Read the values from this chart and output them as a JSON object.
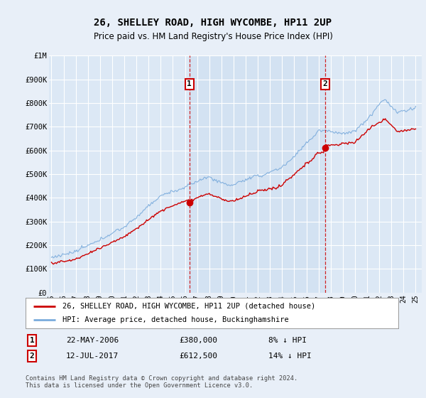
{
  "title": "26, SHELLEY ROAD, HIGH WYCOMBE, HP11 2UP",
  "subtitle": "Price paid vs. HM Land Registry's House Price Index (HPI)",
  "ylabel_ticks": [
    "£0",
    "£100K",
    "£200K",
    "£300K",
    "£400K",
    "£500K",
    "£600K",
    "£700K",
    "£800K",
    "£900K",
    "£1M"
  ],
  "ytick_values": [
    0,
    100000,
    200000,
    300000,
    400000,
    500000,
    600000,
    700000,
    800000,
    900000,
    1000000
  ],
  "ylim": [
    0,
    1000000
  ],
  "background_color": "#e8eff8",
  "plot_bg": "#dce8f5",
  "shade_bg": "#ccddf0",
  "grid_color": "#ffffff",
  "hpi_color": "#7aabdc",
  "price_color": "#cc0000",
  "sale1_date": "22-MAY-2006",
  "sale1_price": 380000,
  "sale1_year": 2006.37,
  "sale2_date": "12-JUL-2017",
  "sale2_price": 612500,
  "sale2_year": 2017.53,
  "legend_line1": "26, SHELLEY ROAD, HIGH WYCOMBE, HP11 2UP (detached house)",
  "legend_line2": "HPI: Average price, detached house, Buckinghamshire",
  "footer": "Contains HM Land Registry data © Crown copyright and database right 2024.\nThis data is licensed under the Open Government Licence v3.0.",
  "sale1_pct": "8% ↓ HPI",
  "sale2_pct": "14% ↓ HPI"
}
